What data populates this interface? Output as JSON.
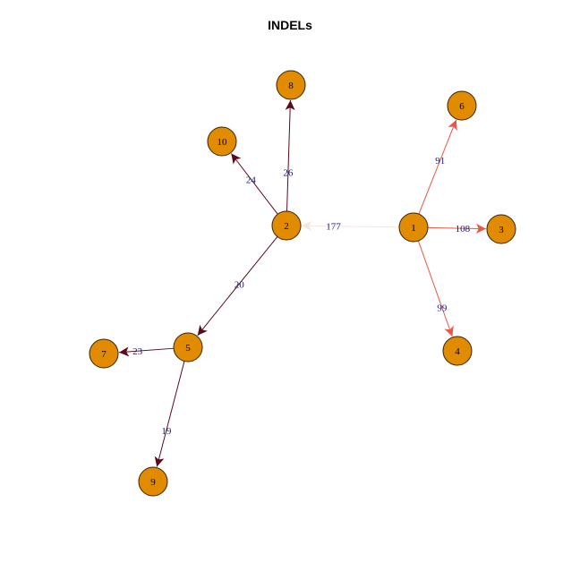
{
  "title": "INDELs",
  "colors": {
    "node_fill": "#E08B00",
    "node_stroke": "#3a2200",
    "edge_dark": "#5a0a1a",
    "edge_red": "#E8574A",
    "edge_faint": "#f3e6df"
  },
  "nodes": [
    {
      "id": "1",
      "label": "1"
    },
    {
      "id": "2",
      "label": "2"
    },
    {
      "id": "3",
      "label": "3"
    },
    {
      "id": "4",
      "label": "4"
    },
    {
      "id": "5",
      "label": "5"
    },
    {
      "id": "6",
      "label": "6"
    },
    {
      "id": "7",
      "label": "7"
    },
    {
      "id": "8",
      "label": "8"
    },
    {
      "id": "9",
      "label": "9"
    },
    {
      "id": "10",
      "label": "10"
    }
  ],
  "edges": [
    {
      "from": "1",
      "to": "2",
      "label": "177",
      "color": "faint"
    },
    {
      "from": "1",
      "to": "6",
      "label": "91",
      "color": "red"
    },
    {
      "from": "1",
      "to": "3",
      "label": "108",
      "color": "red"
    },
    {
      "from": "1",
      "to": "4",
      "label": "99",
      "color": "red"
    },
    {
      "from": "2",
      "to": "8",
      "label": "26",
      "color": "dark"
    },
    {
      "from": "2",
      "to": "10",
      "label": "24",
      "color": "dark"
    },
    {
      "from": "2",
      "to": "5",
      "label": "20",
      "color": "dark"
    },
    {
      "from": "5",
      "to": "7",
      "label": "23",
      "color": "dark"
    },
    {
      "from": "5",
      "to": "9",
      "label": "19",
      "color": "dark"
    }
  ]
}
